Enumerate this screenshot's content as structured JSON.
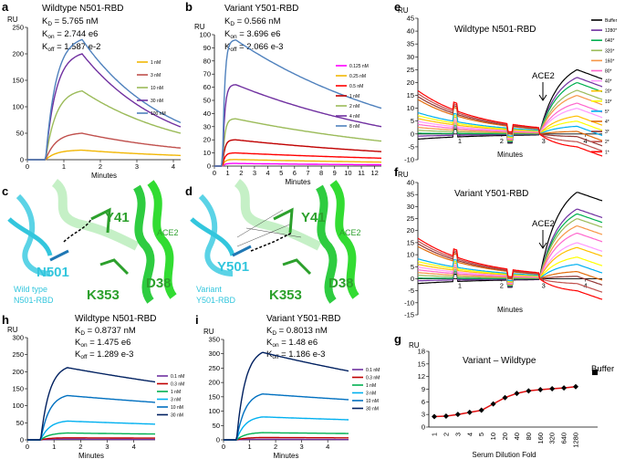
{
  "panels": {
    "a": {
      "letter": "a",
      "title": "Wildtype N501-RBD",
      "kd_label": "K",
      "kd_sub": "D",
      "kd_val": " = 5.765 nM",
      "kon_sub": "on",
      "kon_val": " = 2.744 e6",
      "koff_sub": "off",
      "koff_val": " = 1.587 e-2"
    },
    "b": {
      "letter": "b",
      "title": "Variant Y501-RBD",
      "kd_label": "K",
      "kd_sub": "D",
      "kd_val": " = 0.566 nM",
      "kon_sub": "on",
      "kon_val": " = 3.696 e6",
      "koff_sub": "off",
      "koff_val": " = 2.066 e-3"
    },
    "c": {
      "letter": "c",
      "labels": [
        "Y41",
        "ACE2",
        "N501",
        "Wild type",
        "N501-RBD",
        "K353",
        "D38"
      ]
    },
    "d": {
      "letter": "d",
      "labels": [
        "Y41",
        "ACE2",
        "Y501",
        "Variant",
        "Y501-RBD",
        "K353",
        "D38"
      ]
    },
    "e": {
      "letter": "e",
      "title": "Wildtype N501-RBD",
      "arrow_label": "ACE2"
    },
    "f": {
      "letter": "f",
      "title": "Variant Y501-RBD",
      "arrow_label": "ACE2"
    },
    "g": {
      "letter": "g",
      "title": "Variant – Wildtype",
      "buffer_label": "Buffer"
    },
    "h": {
      "letter": "h",
      "title": "Wildtype N501-RBD",
      "kd_label": "K",
      "kd_sub": "D",
      "kd_val": " = 0.8737 nM",
      "kon_sub": "on",
      "kon_val": " = 1.475 e6",
      "koff_sub": "off",
      "koff_val": " = 1.289 e-3"
    },
    "i": {
      "letter": "i",
      "title": "Variant Y501-RBD",
      "kd_label": "K",
      "kd_sub": "D",
      "kd_val": " = 0.8013 nM",
      "kon_sub": "on",
      "kon_val": " = 1.48 e6",
      "koff_sub": "off",
      "koff_val": " = 1.186 e-3"
    }
  },
  "chart_data": [
    {
      "id": "a",
      "type": "line",
      "ylabel": "RU",
      "xlabel": "Minutes",
      "xlim": [
        0,
        4.2
      ],
      "ylim": [
        0,
        250
      ],
      "xticks": [
        0,
        1,
        2,
        3,
        4
      ],
      "yticks": [
        0,
        50,
        100,
        150,
        200,
        250
      ],
      "series": [
        {
          "name": "1 nM",
          "color": "#f2b705",
          "peak": 18,
          "end": 8
        },
        {
          "name": "3 nM",
          "color": "#c0504d",
          "peak": 50,
          "end": 22
        },
        {
          "name": "10 nM",
          "color": "#9bbb59",
          "peak": 130,
          "end": 50
        },
        {
          "name": "30 nM",
          "color": "#7030a0",
          "peak": 200,
          "end": 62
        },
        {
          "name": "100 nM",
          "color": "#4f81bd",
          "peak": 227,
          "end": 70
        }
      ]
    },
    {
      "id": "b",
      "type": "line",
      "ylabel": "RU",
      "xlabel": "Minutes",
      "xlim": [
        0,
        12.5
      ],
      "ylim": [
        0,
        100
      ],
      "xticks": [
        0,
        1,
        2,
        3,
        4,
        5,
        6,
        7,
        8,
        9,
        10,
        11,
        12
      ],
      "yticks": [
        0,
        10,
        20,
        30,
        40,
        50,
        60,
        70,
        80,
        90,
        100
      ],
      "series": [
        {
          "name": "0.125 nM",
          "color": "#ff00ff",
          "peak": 2,
          "end": 1
        },
        {
          "name": "0.25 nM",
          "color": "#f2b705",
          "peak": 5,
          "end": 3
        },
        {
          "name": "0.5 nM",
          "color": "#ff0000",
          "peak": 10,
          "end": 6
        },
        {
          "name": "1 nM",
          "color": "#c00000",
          "peak": 20,
          "end": 11
        },
        {
          "name": "2 nM",
          "color": "#9bbb59",
          "peak": 36,
          "end": 19
        },
        {
          "name": "4 nM",
          "color": "#7030a0",
          "peak": 62,
          "end": 30
        },
        {
          "name": "8 nM",
          "color": "#4f81bd",
          "peak": 96,
          "end": 44
        }
      ]
    },
    {
      "id": "e",
      "type": "line",
      "ylabel": "RU",
      "xlabel": "Minutes",
      "xlim": [
        0,
        4.4
      ],
      "ylim": [
        -10,
        45
      ],
      "xticks": [
        1,
        2,
        3,
        4
      ],
      "yticks": [
        -10,
        -5,
        0,
        5,
        10,
        15,
        20,
        25,
        30,
        35,
        40,
        45
      ],
      "series": [
        {
          "name": "Buffer",
          "color": "#000000",
          "peak": 25
        },
        {
          "name": "1280*",
          "color": "#7030a0",
          "peak": 22
        },
        {
          "name": "640*",
          "color": "#00b050",
          "peak": 20
        },
        {
          "name": "320*",
          "color": "#9bbb59",
          "peak": 17
        },
        {
          "name": "160*",
          "color": "#f79646",
          "peak": 15
        },
        {
          "name": "80*",
          "color": "#ff66cc",
          "peak": 12
        },
        {
          "name": "40*",
          "color": "#ff99ff",
          "peak": 10
        },
        {
          "name": "20*",
          "color": "#ffc000",
          "peak": 7
        },
        {
          "name": "10*",
          "color": "#ffff00",
          "peak": 5
        },
        {
          "name": "5*",
          "color": "#00b0f0",
          "peak": 3
        },
        {
          "name": "4*",
          "color": "#e26b0a",
          "peak": 1
        },
        {
          "name": "3*",
          "color": "#943634",
          "peak": -1
        },
        {
          "name": "2*",
          "color": "#c0504d",
          "peak": -3
        },
        {
          "name": "1*",
          "color": "#ff0000",
          "peak": -5
        }
      ]
    },
    {
      "id": "f",
      "type": "line",
      "ylabel": "RU",
      "xlabel": "Minutes",
      "xlim": [
        0,
        4.4
      ],
      "ylim": [
        -15,
        40
      ],
      "xticks": [
        1,
        2,
        3,
        4
      ],
      "yticks": [
        -15,
        -10,
        -5,
        0,
        5,
        10,
        15,
        20,
        25,
        30,
        35,
        40
      ],
      "series_peaks": [
        36,
        29,
        27,
        25,
        22,
        19,
        15,
        13,
        9,
        6,
        3,
        1,
        -2,
        -5
      ]
    },
    {
      "id": "g",
      "type": "line",
      "ylabel": "RU",
      "xlabel": "Serum Dilution Fold",
      "ylim": [
        0,
        18
      ],
      "yticks": [
        0,
        3,
        6,
        9,
        12,
        15,
        18
      ],
      "categories": [
        "1",
        "2",
        "3",
        "4",
        "5",
        "10",
        "20",
        "40",
        "80",
        "160",
        "320",
        "640",
        "1280"
      ],
      "values": [
        2.5,
        2.6,
        3.0,
        3.5,
        4.0,
        5.5,
        7.0,
        8.0,
        8.6,
        8.9,
        9.1,
        9.3,
        9.6
      ],
      "buffer": 13
    },
    {
      "id": "h",
      "type": "line",
      "ylabel": "RU",
      "xlabel": "Minutes",
      "xlim": [
        0,
        4.8
      ],
      "ylim": [
        0,
        300
      ],
      "xticks": [
        0,
        1,
        2,
        3,
        4
      ],
      "yticks": [
        0,
        50,
        100,
        150,
        200,
        250,
        300
      ],
      "series": [
        {
          "name": "0.1 nM",
          "color": "#7030a0",
          "peak": 2,
          "end": 1
        },
        {
          "name": "0.3 nM",
          "color": "#c00000",
          "peak": 6,
          "end": 5
        },
        {
          "name": "1 nM",
          "color": "#00b050",
          "peak": 20,
          "end": 17
        },
        {
          "name": "3 nM",
          "color": "#00b0f0",
          "peak": 55,
          "end": 46
        },
        {
          "name": "10 nM",
          "color": "#0070c0",
          "peak": 130,
          "end": 110
        },
        {
          "name": "30 nM",
          "color": "#002060",
          "peak": 212,
          "end": 170
        }
      ]
    },
    {
      "id": "i",
      "type": "line",
      "ylabel": "RU",
      "xlabel": "Minutes",
      "xlim": [
        0,
        4.8
      ],
      "ylim": [
        0,
        350
      ],
      "xticks": [
        0,
        1,
        2,
        3,
        4
      ],
      "yticks": [
        0,
        50,
        100,
        150,
        200,
        250,
        300,
        350
      ],
      "series": [
        {
          "name": "0.1 nM",
          "color": "#7030a0",
          "peak": 2,
          "end": 1
        },
        {
          "name": "0.3 nM",
          "color": "#c00000",
          "peak": 8,
          "end": 7
        },
        {
          "name": "1 nM",
          "color": "#00b050",
          "peak": 25,
          "end": 22
        },
        {
          "name": "3 nM",
          "color": "#00b0f0",
          "peak": 80,
          "end": 70
        },
        {
          "name": "10 nM",
          "color": "#0070c0",
          "peak": 160,
          "end": 140
        },
        {
          "name": "30 nM",
          "color": "#002060",
          "peak": 305,
          "end": 240
        }
      ]
    }
  ]
}
